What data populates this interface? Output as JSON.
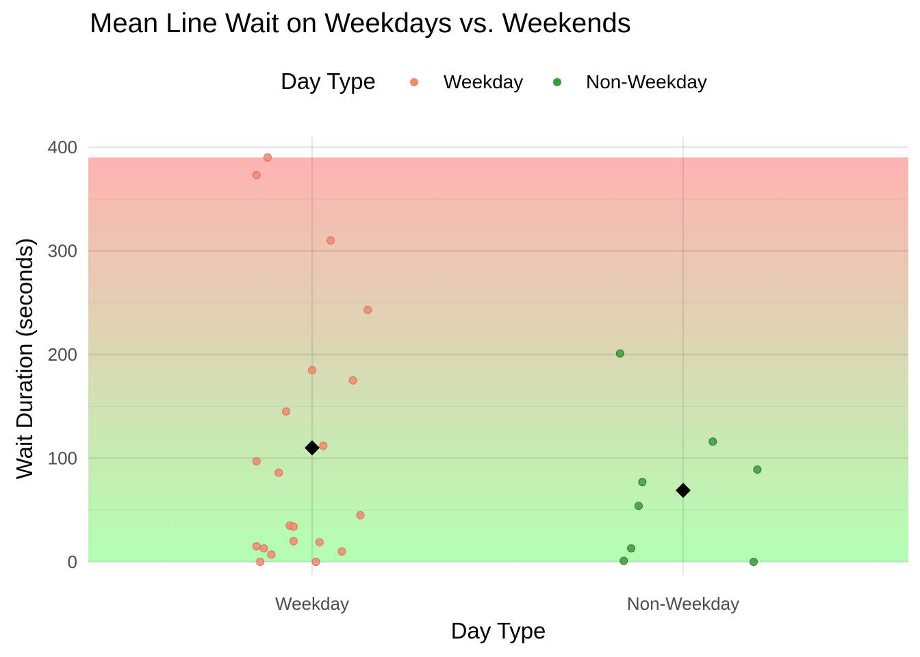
{
  "chart_data": {
    "type": "scatter",
    "title": "Mean Line Wait on Weekdays vs. Weekends",
    "xlabel": "Day Type",
    "ylabel": "Wait Duration (seconds)",
    "categories": [
      "Weekday",
      "Non-Weekday"
    ],
    "ylim": [
      0,
      400
    ],
    "yticks": [
      0,
      100,
      200,
      300,
      400
    ],
    "grid": true,
    "background_gradient": {
      "from_value": 0,
      "to_value": 390,
      "bottom_color": "#b3ffb3",
      "top_color": "#ffb3b3"
    },
    "legend": {
      "title": "Day Type",
      "position": "top",
      "entries": [
        {
          "name": "Weekday",
          "color": "#f08a70"
        },
        {
          "name": "Non-Weekday",
          "color": "#3d9a3d"
        }
      ]
    },
    "series": [
      {
        "name": "Weekday",
        "color": "#f08a70",
        "points": [
          {
            "x": -0.12,
            "y": 390
          },
          {
            "x": -0.15,
            "y": 373
          },
          {
            "x": 0.05,
            "y": 310
          },
          {
            "x": 0.15,
            "y": 243
          },
          {
            "x": 0.0,
            "y": 185
          },
          {
            "x": 0.11,
            "y": 175
          },
          {
            "x": -0.07,
            "y": 145
          },
          {
            "x": 0.03,
            "y": 112
          },
          {
            "x": -0.15,
            "y": 97
          },
          {
            "x": -0.09,
            "y": 86
          },
          {
            "x": 0.13,
            "y": 45
          },
          {
            "x": -0.06,
            "y": 35
          },
          {
            "x": -0.05,
            "y": 34
          },
          {
            "x": -0.05,
            "y": 20
          },
          {
            "x": 0.02,
            "y": 19
          },
          {
            "x": -0.15,
            "y": 15
          },
          {
            "x": -0.13,
            "y": 13
          },
          {
            "x": 0.08,
            "y": 10
          },
          {
            "x": -0.11,
            "y": 7
          },
          {
            "x": -0.14,
            "y": 0
          },
          {
            "x": 0.01,
            "y": 0
          }
        ]
      },
      {
        "name": "Non-Weekday",
        "color": "#3d9a3d",
        "points": [
          {
            "x": -0.17,
            "y": 201
          },
          {
            "x": 0.08,
            "y": 116
          },
          {
            "x": 0.2,
            "y": 89
          },
          {
            "x": -0.11,
            "y": 77
          },
          {
            "x": -0.12,
            "y": 54
          },
          {
            "x": -0.14,
            "y": 13
          },
          {
            "x": -0.16,
            "y": 1
          },
          {
            "x": 0.19,
            "y": 0
          }
        ]
      }
    ],
    "means": [
      {
        "category": "Weekday",
        "value": 110,
        "marker": "diamond",
        "color": "#000000"
      },
      {
        "category": "Non-Weekday",
        "value": 69,
        "marker": "diamond",
        "color": "#000000"
      }
    ]
  }
}
